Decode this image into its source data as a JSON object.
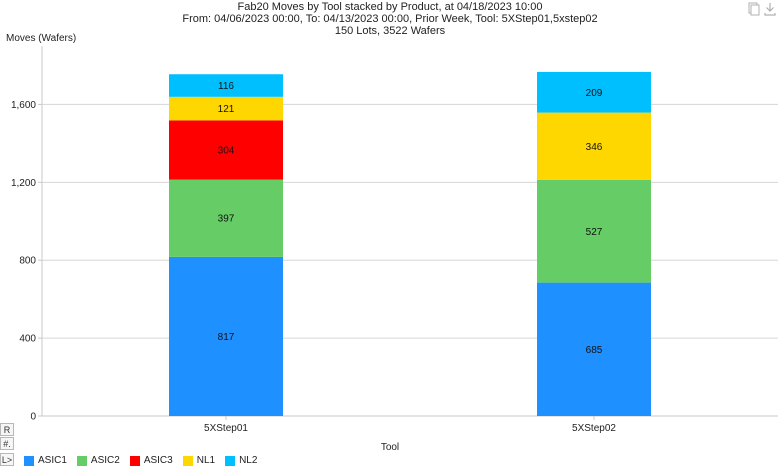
{
  "chart_data": {
    "type": "bar",
    "stacked": true,
    "title": [
      "Fab20 Moves by Tool stacked by Product, at 04/18/2023 10:00",
      "From: 04/06/2023 00:00, To: 04/13/2023 00:00, Prior Week, Tool: 5XStep01,5xstep02",
      "150 Lots, 3522 Wafers"
    ],
    "ylabel": "Moves (Wafers)",
    "xlabel": "Tool",
    "categories": [
      "5XStep01",
      "5XStep02"
    ],
    "ylim": [
      0,
      1900
    ],
    "yticks": [
      0,
      400,
      800,
      1200,
      1600
    ],
    "ytick_labels": [
      "0",
      "400",
      "800",
      "1,200",
      "1,600"
    ],
    "grid": true,
    "legend_position": "bottom-left",
    "series": [
      {
        "name": "ASIC1",
        "color": "#1e90ff",
        "values": [
          817,
          685
        ]
      },
      {
        "name": "ASIC2",
        "color": "#66cc66",
        "values": [
          397,
          527
        ]
      },
      {
        "name": "ASIC3",
        "color": "#ff0000",
        "values": [
          304,
          0
        ]
      },
      {
        "name": "NL1",
        "color": "#ffd700",
        "values": [
          121,
          346
        ]
      },
      {
        "name": "NL2",
        "color": "#00bfff",
        "values": [
          116,
          209
        ]
      }
    ]
  },
  "side_buttons": [
    "R",
    "#.",
    "L>"
  ],
  "icons": [
    "copy-icon",
    "download-icon"
  ]
}
